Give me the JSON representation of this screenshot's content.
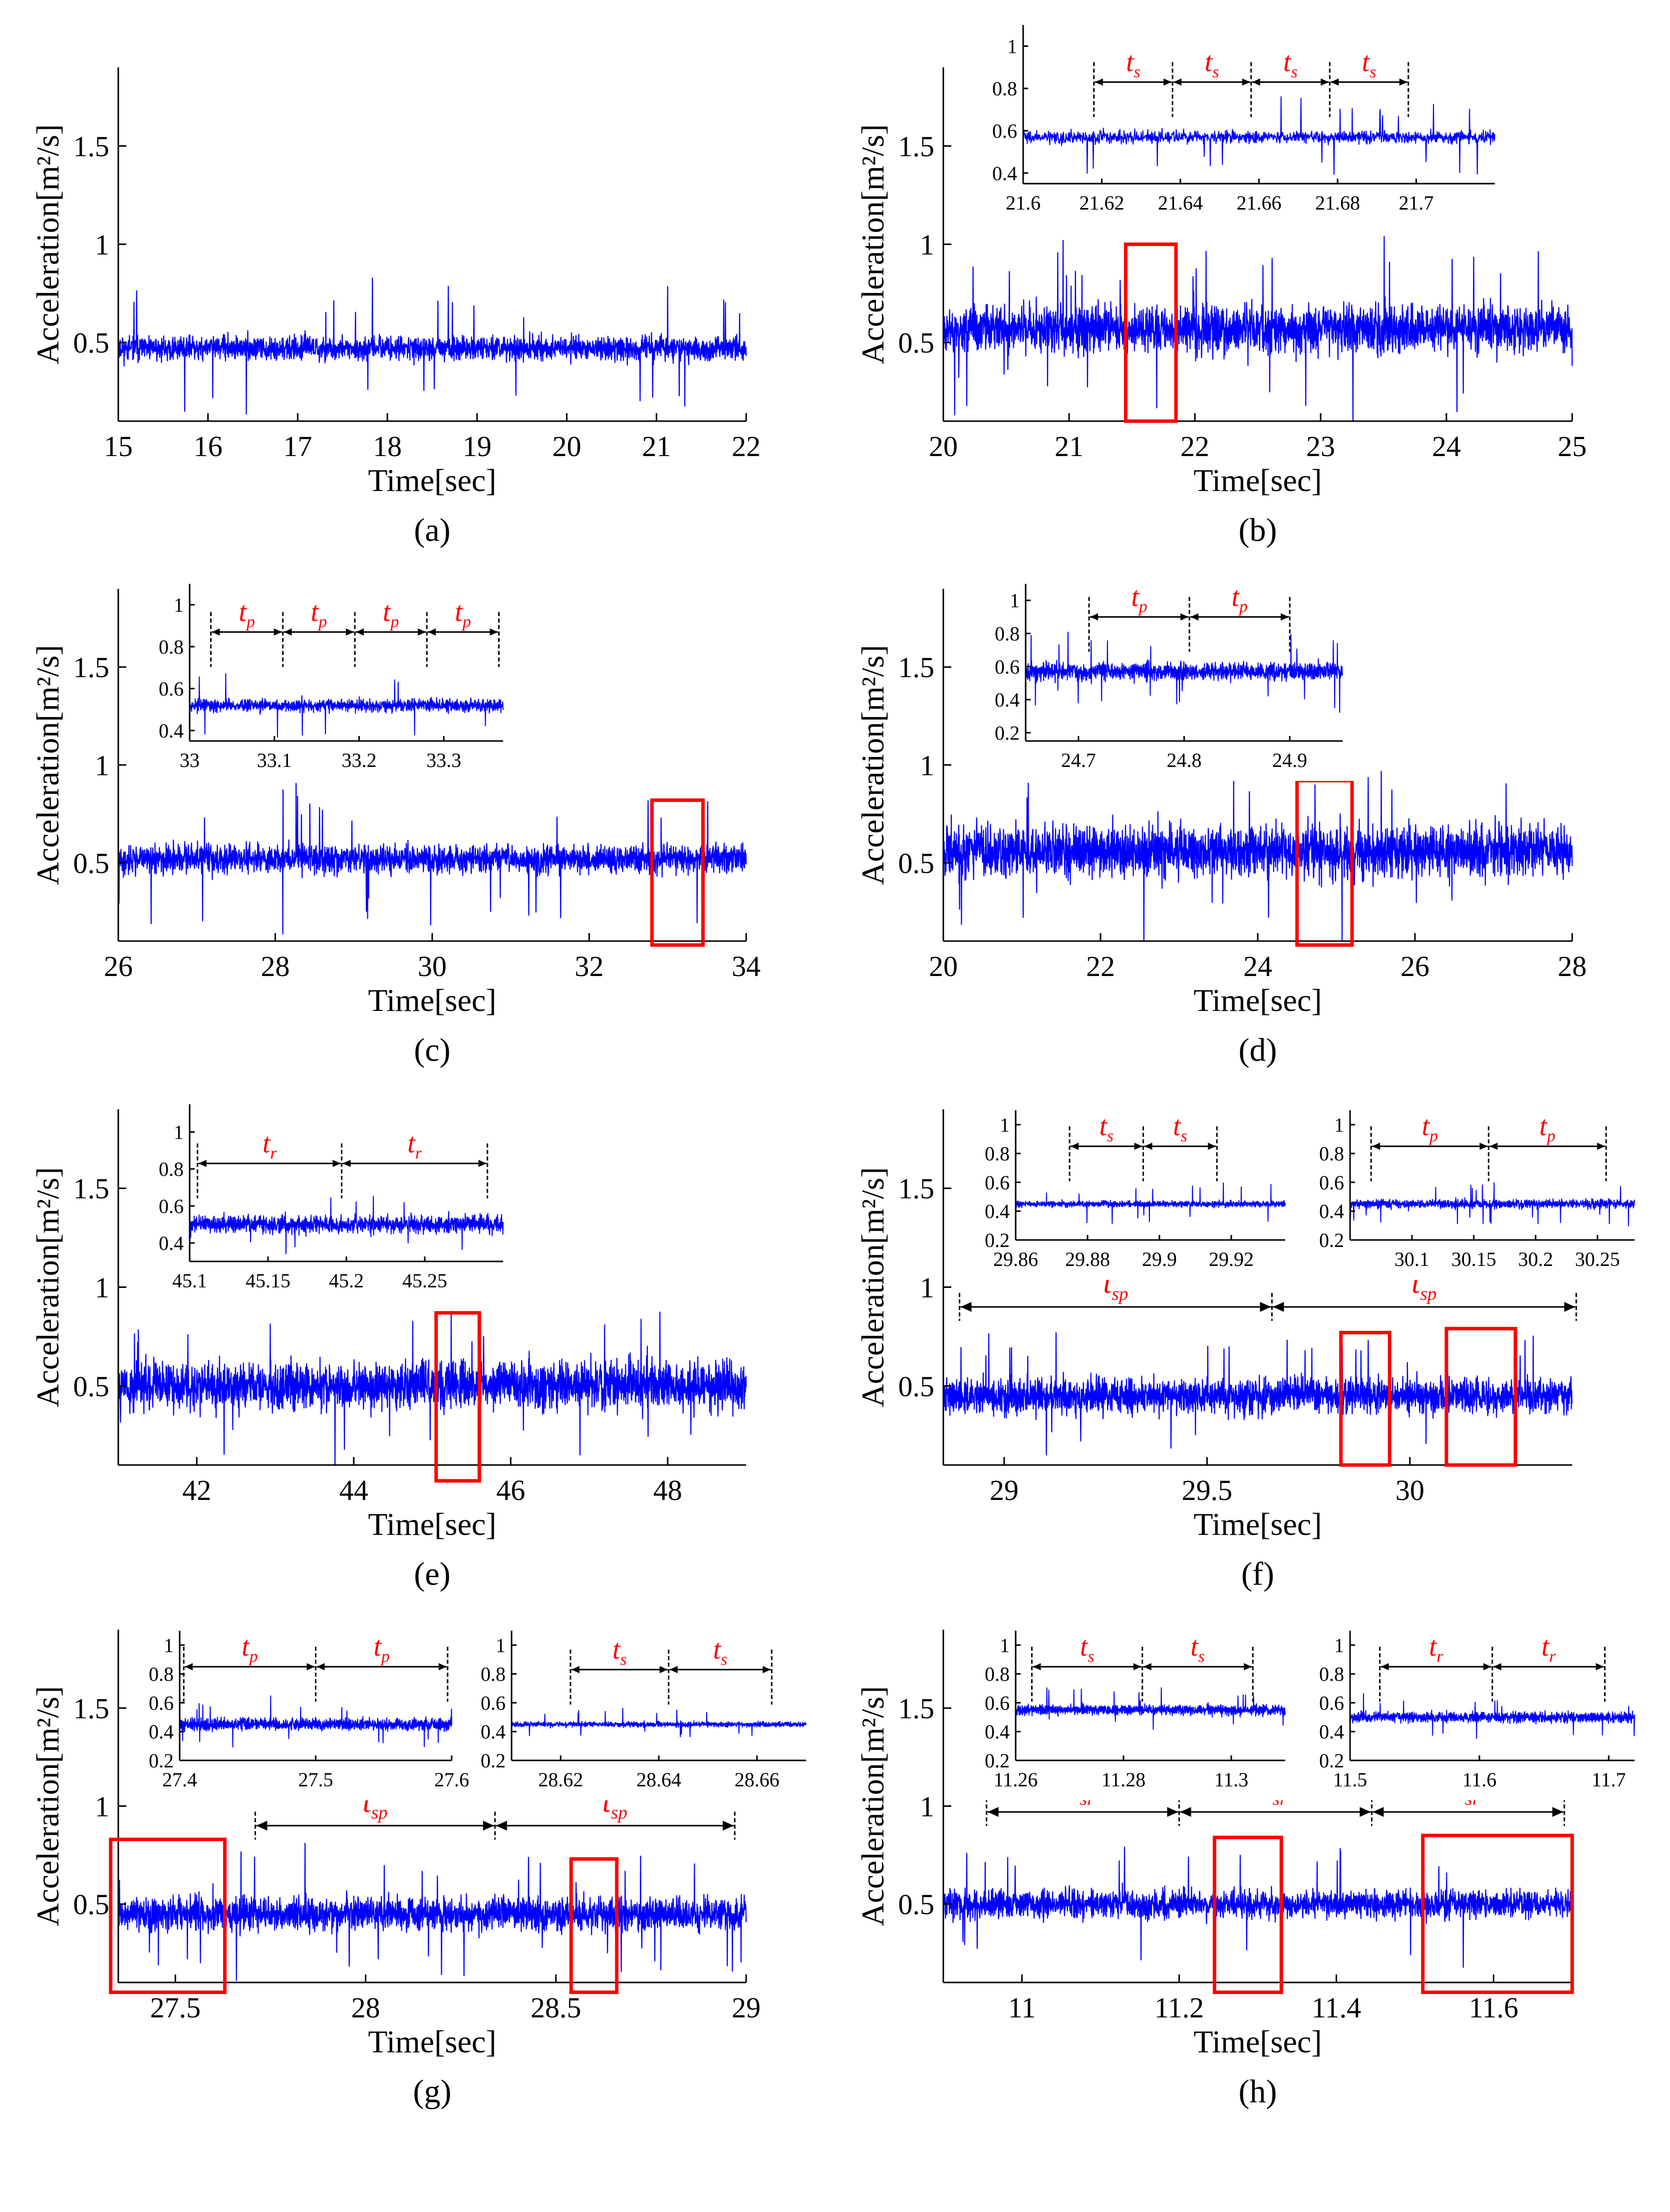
{
  "figure": {
    "ylabel": "Acceleration[m²/s]",
    "xlabel": "Time[sec]",
    "colors": {
      "signal": "#0000ff",
      "highlight": "#ff0000",
      "annotation": "#ff0000",
      "axis": "#000000"
    }
  },
  "chart_data": [
    {
      "id": "a",
      "type": "line",
      "caption": "(a)",
      "xlim": [
        15,
        22
      ],
      "ylim": [
        0.1,
        1.9
      ],
      "xticks": [
        "15",
        "16",
        "17",
        "18",
        "19",
        "20",
        "21",
        "22"
      ],
      "xtick_values": [
        15,
        16,
        17,
        18,
        19,
        20,
        21,
        22
      ],
      "yticks": [
        "0.5",
        "1",
        "1.5"
      ],
      "ytick_values": [
        0.5,
        1,
        1.5
      ],
      "series": [
        {
          "name": "acceleration",
          "mean": 0.47,
          "noise_amplitude": 0.1,
          "spike_amplitude": 0.32,
          "seed": 11
        }
      ],
      "highlight_boxes": [],
      "period_annotations": [],
      "insets": []
    },
    {
      "id": "b",
      "type": "line",
      "caption": "(b)",
      "xlim": [
        20,
        25
      ],
      "ylim": [
        0.1,
        1.9
      ],
      "xticks": [
        "20",
        "21",
        "22",
        "23",
        "24",
        "25"
      ],
      "xtick_values": [
        20,
        21,
        22,
        23,
        24,
        25
      ],
      "yticks": [
        "0.5",
        "1",
        "1.5"
      ],
      "ytick_values": [
        0.5,
        1,
        1.5
      ],
      "series": [
        {
          "name": "acceleration",
          "mean": 0.57,
          "noise_amplitude": 0.2,
          "spike_amplitude": 0.4,
          "seed": 23
        }
      ],
      "highlight_boxes": [
        {
          "x": [
            21.45,
            21.85
          ],
          "y": [
            0.1,
            1.0
          ]
        }
      ],
      "period_annotations": [],
      "insets": [
        {
          "xlim": [
            21.6,
            21.72
          ],
          "ylim": [
            0.35,
            1.1
          ],
          "xticks": [
            "21.6",
            "21.62",
            "21.64",
            "21.66",
            "21.68",
            "21.7"
          ],
          "xtick_values": [
            21.6,
            21.62,
            21.64,
            21.66,
            21.68,
            21.7
          ],
          "yticks": [
            "0.4",
            "0.6",
            "0.8",
            "1"
          ],
          "ytick_values": [
            0.4,
            0.6,
            0.8,
            1
          ],
          "series": {
            "mean": 0.57,
            "noise_amplitude": 0.05,
            "spike_amplitude": 0.17,
            "seed": 31
          },
          "annotation_y": 0.83,
          "label": "t",
          "subscript": "s",
          "markers": [
            21.618,
            21.638,
            21.658,
            21.678,
            21.698
          ]
        }
      ]
    },
    {
      "id": "c",
      "type": "line",
      "caption": "(c)",
      "xlim": [
        26,
        34
      ],
      "ylim": [
        0.1,
        1.9
      ],
      "xticks": [
        "26",
        "28",
        "30",
        "32",
        "34"
      ],
      "xtick_values": [
        26,
        28,
        30,
        32,
        34
      ],
      "yticks": [
        "0.5",
        "1",
        "1.5"
      ],
      "ytick_values": [
        0.5,
        1,
        1.5
      ],
      "series": [
        {
          "name": "acceleration",
          "mean": 0.52,
          "noise_amplitude": 0.12,
          "spike_amplitude": 0.35,
          "seed": 41
        }
      ],
      "highlight_boxes": [
        {
          "x": [
            32.8,
            33.45
          ],
          "y": [
            0.08,
            0.82
          ]
        }
      ],
      "period_annotations": [],
      "insets": [
        {
          "xlim": [
            33.0,
            33.37
          ],
          "ylim": [
            0.35,
            1.1
          ],
          "xticks": [
            "33",
            "33.1",
            "33.2",
            "33.3"
          ],
          "xtick_values": [
            33,
            33.1,
            33.2,
            33.3
          ],
          "yticks": [
            "0.4",
            "0.6",
            "0.8",
            "1"
          ],
          "ytick_values": [
            0.4,
            0.6,
            0.8,
            1
          ],
          "series": {
            "mean": 0.52,
            "noise_amplitude": 0.05,
            "spike_amplitude": 0.17,
            "seed": 53
          },
          "annotation_y": 0.87,
          "label": "t",
          "subscript": "p",
          "markers": [
            33.025,
            33.11,
            33.195,
            33.28,
            33.365
          ]
        }
      ]
    },
    {
      "id": "d",
      "type": "line",
      "caption": "(d)",
      "xlim": [
        20,
        28
      ],
      "ylim": [
        0.1,
        1.9
      ],
      "xticks": [
        "20",
        "22",
        "24",
        "26",
        "28"
      ],
      "xtick_values": [
        20,
        22,
        24,
        26,
        28
      ],
      "yticks": [
        "0.5",
        "1",
        "1.5"
      ],
      "ytick_values": [
        0.5,
        1,
        1.5
      ],
      "series": [
        {
          "name": "acceleration",
          "mean": 0.56,
          "noise_amplitude": 0.22,
          "spike_amplitude": 0.42,
          "seed": 67
        }
      ],
      "highlight_boxes": [
        {
          "x": [
            24.5,
            25.2
          ],
          "y": [
            0.08,
            0.92
          ]
        }
      ],
      "period_annotations": [],
      "insets": [
        {
          "xlim": [
            24.65,
            24.95
          ],
          "ylim": [
            0.15,
            1.1
          ],
          "xticks": [
            "24.7",
            "24.8",
            "24.9"
          ],
          "xtick_values": [
            24.7,
            24.8,
            24.9
          ],
          "yticks": [
            "0.2",
            "0.4",
            "0.6",
            "0.8",
            "1"
          ],
          "ytick_values": [
            0.2,
            0.4,
            0.6,
            0.8,
            1
          ],
          "series": {
            "mean": 0.57,
            "noise_amplitude": 0.09,
            "spike_amplitude": 0.22,
            "seed": 71
          },
          "annotation_y": 0.9,
          "label": "t",
          "subscript": "p",
          "markers": [
            24.71,
            24.805,
            24.9
          ]
        }
      ]
    },
    {
      "id": "e",
      "type": "line",
      "caption": "(e)",
      "xlim": [
        41,
        49
      ],
      "ylim": [
        0.1,
        1.9
      ],
      "xticks": [
        "42",
        "44",
        "46",
        "48"
      ],
      "xtick_values": [
        42,
        44,
        46,
        48
      ],
      "yticks": [
        "0.5",
        "1",
        "1.5"
      ],
      "ytick_values": [
        0.5,
        1,
        1.5
      ],
      "series": [
        {
          "name": "acceleration",
          "mean": 0.5,
          "noise_amplitude": 0.2,
          "spike_amplitude": 0.35,
          "seed": 83
        }
      ],
      "highlight_boxes": [
        {
          "x": [
            45.05,
            45.6
          ],
          "y": [
            0.02,
            0.87
          ]
        }
      ],
      "period_annotations": [],
      "insets": [
        {
          "xlim": [
            45.1,
            45.3
          ],
          "ylim": [
            0.3,
            1.15
          ],
          "xticks": [
            "45.1",
            "45.15",
            "45.2",
            "45.25"
          ],
          "xtick_values": [
            45.1,
            45.15,
            45.2,
            45.25
          ],
          "yticks": [
            "0.4",
            "0.6",
            "0.8",
            "1"
          ],
          "ytick_values": [
            0.4,
            0.6,
            0.8,
            1
          ],
          "series": {
            "mean": 0.5,
            "noise_amplitude": 0.08,
            "spike_amplitude": 0.17,
            "seed": 97
          },
          "annotation_y": 0.83,
          "label": "t",
          "subscript": "r",
          "markers": [
            45.105,
            45.197,
            45.29
          ]
        }
      ]
    },
    {
      "id": "f",
      "type": "line",
      "caption": "(f)",
      "xlim": [
        28.85,
        30.4
      ],
      "ylim": [
        0.1,
        1.9
      ],
      "xticks": [
        "29",
        "29.5",
        "30"
      ],
      "xtick_values": [
        29,
        29.5,
        30
      ],
      "yticks": [
        "0.5",
        "1",
        "1.5"
      ],
      "ytick_values": [
        0.5,
        1,
        1.5
      ],
      "series": [
        {
          "name": "acceleration",
          "mean": 0.45,
          "noise_amplitude": 0.15,
          "spike_amplitude": 0.3,
          "seed": 101
        }
      ],
      "highlight_boxes": [
        {
          "x": [
            29.83,
            29.95
          ],
          "y": [
            0.1,
            0.77
          ]
        },
        {
          "x": [
            30.09,
            30.26
          ],
          "y": [
            0.1,
            0.79
          ]
        }
      ],
      "period_annotations": [
        {
          "y": 0.9,
          "label": "t",
          "subscript": "sp",
          "markers": [
            28.89,
            29.66,
            30.41
          ]
        }
      ],
      "insets": [
        {
          "xlim": [
            29.86,
            29.935
          ],
          "ylim": [
            0.2,
            1.1
          ],
          "xticks": [
            "29.86",
            "29.88",
            "29.9",
            "29.92"
          ],
          "xtick_values": [
            29.86,
            29.88,
            29.9,
            29.92
          ],
          "yticks": [
            "0.2",
            "0.4",
            "0.6",
            "0.8",
            "1"
          ],
          "ytick_values": [
            0.2,
            0.4,
            0.6,
            0.8,
            1
          ],
          "series": {
            "mean": 0.45,
            "noise_amplitude": 0.035,
            "spike_amplitude": 0.13,
            "seed": 113
          },
          "annotation_y": 0.85,
          "label": "t",
          "subscript": "s",
          "markers": [
            29.875,
            29.8955,
            29.916
          ]
        },
        {
          "xlim": [
            30.05,
            30.28
          ],
          "ylim": [
            0.2,
            1.1
          ],
          "xticks": [
            "30.1",
            "30.15",
            "30.2",
            "30.25"
          ],
          "xtick_values": [
            30.1,
            30.15,
            30.2,
            30.25
          ],
          "yticks": [
            "0.2",
            "0.4",
            "0.6",
            "0.8",
            "1"
          ],
          "ytick_values": [
            0.2,
            0.4,
            0.6,
            0.8,
            1
          ],
          "series": {
            "mean": 0.45,
            "noise_amplitude": 0.05,
            "spike_amplitude": 0.16,
            "seed": 127
          },
          "annotation_y": 0.85,
          "label": "t",
          "subscript": "p",
          "markers": [
            30.067,
            30.162,
            30.257
          ]
        }
      ]
    },
    {
      "id": "g",
      "type": "line",
      "caption": "(g)",
      "xlim": [
        27.35,
        29.0
      ],
      "ylim": [
        0.1,
        1.9
      ],
      "xticks": [
        "27.5",
        "28",
        "28.5",
        "29"
      ],
      "xtick_values": [
        27.5,
        28,
        28.5,
        29
      ],
      "yticks": [
        "0.5",
        "1",
        "1.5"
      ],
      "ytick_values": [
        0.5,
        1,
        1.5
      ],
      "series": [
        {
          "name": "acceleration",
          "mean": 0.45,
          "noise_amplitude": 0.14,
          "spike_amplitude": 0.3,
          "seed": 131
        }
      ],
      "highlight_boxes": [
        {
          "x": [
            27.33,
            27.63
          ],
          "y": [
            0.05,
            0.83
          ]
        },
        {
          "x": [
            28.54,
            28.66
          ],
          "y": [
            0.05,
            0.73
          ]
        }
      ],
      "period_annotations": [
        {
          "y": 0.9,
          "label": "t",
          "subscript": "sp",
          "markers": [
            27.71,
            28.34,
            28.97
          ]
        }
      ],
      "insets": [
        {
          "xlim": [
            27.4,
            27.6
          ],
          "ylim": [
            0.2,
            1.1
          ],
          "xticks": [
            "27.4",
            "27.5",
            "27.6"
          ],
          "xtick_values": [
            27.4,
            27.5,
            27.6
          ],
          "yticks": [
            "0.2",
            "0.4",
            "0.6",
            "0.8",
            "1"
          ],
          "ytick_values": [
            0.2,
            0.4,
            0.6,
            0.8,
            1
          ],
          "series": {
            "mean": 0.45,
            "noise_amplitude": 0.07,
            "spike_amplitude": 0.16,
            "seed": 139
          },
          "annotation_y": 0.85,
          "label": "t",
          "subscript": "p",
          "markers": [
            27.403,
            27.5,
            27.597
          ]
        },
        {
          "xlim": [
            28.61,
            28.67
          ],
          "ylim": [
            0.2,
            1.1
          ],
          "xticks": [
            "28.62",
            "28.64",
            "28.66"
          ],
          "xtick_values": [
            28.62,
            28.64,
            28.66
          ],
          "yticks": [
            "0.2",
            "0.4",
            "0.6",
            "0.8",
            "1"
          ],
          "ytick_values": [
            0.2,
            0.4,
            0.6,
            0.8,
            1
          ],
          "series": {
            "mean": 0.45,
            "noise_amplitude": 0.03,
            "spike_amplitude": 0.1,
            "seed": 149
          },
          "annotation_y": 0.83,
          "label": "t",
          "subscript": "s",
          "markers": [
            28.622,
            28.642,
            28.663
          ]
        }
      ]
    },
    {
      "id": "h",
      "type": "line",
      "caption": "(h)",
      "xlim": [
        10.9,
        11.7
      ],
      "ylim": [
        0.1,
        1.9
      ],
      "xticks": [
        "11",
        "11.2",
        "11.4",
        "11.6"
      ],
      "xtick_values": [
        11,
        11.2,
        11.4,
        11.6
      ],
      "yticks": [
        "0.5",
        "1",
        "1.5"
      ],
      "ytick_values": [
        0.5,
        1,
        1.5
      ],
      "series": [
        {
          "name": "acceleration",
          "mean": 0.5,
          "noise_amplitude": 0.12,
          "spike_amplitude": 0.3,
          "seed": 151
        }
      ],
      "highlight_boxes": [
        {
          "x": [
            11.245,
            11.33
          ],
          "y": [
            0.05,
            0.84
          ]
        },
        {
          "x": [
            11.51,
            11.7
          ],
          "y": [
            0.05,
            0.85
          ]
        }
      ],
      "period_annotations": [
        {
          "y": 0.97,
          "label": "t",
          "subscript": "sr",
          "markers": [
            10.955,
            11.2,
            11.445,
            11.69
          ]
        }
      ],
      "insets": [
        {
          "xlim": [
            11.26,
            11.31
          ],
          "ylim": [
            0.2,
            1.1
          ],
          "xticks": [
            "11.26",
            "11.28",
            "11.3"
          ],
          "xtick_values": [
            11.26,
            11.28,
            11.3
          ],
          "yticks": [
            "0.2",
            "0.4",
            "0.6",
            "0.8",
            "1"
          ],
          "ytick_values": [
            0.2,
            0.4,
            0.6,
            0.8,
            1
          ],
          "series": {
            "mean": 0.55,
            "noise_amplitude": 0.06,
            "spike_amplitude": 0.14,
            "seed": 163
          },
          "annotation_y": 0.85,
          "label": "t",
          "subscript": "s",
          "markers": [
            11.263,
            11.2835,
            11.304
          ]
        },
        {
          "xlim": [
            11.5,
            11.72
          ],
          "ylim": [
            0.2,
            1.1
          ],
          "xticks": [
            "11.5",
            "11.6",
            "11.7"
          ],
          "xtick_values": [
            11.5,
            11.6,
            11.7
          ],
          "yticks": [
            "0.2",
            "0.4",
            "0.6",
            "0.8",
            "1"
          ],
          "ytick_values": [
            0.2,
            0.4,
            0.6,
            0.8,
            1
          ],
          "series": {
            "mean": 0.5,
            "noise_amplitude": 0.06,
            "spike_amplitude": 0.14,
            "seed": 173
          },
          "annotation_y": 0.85,
          "label": "t",
          "subscript": "r",
          "markers": [
            11.523,
            11.61,
            11.697
          ]
        }
      ]
    }
  ]
}
